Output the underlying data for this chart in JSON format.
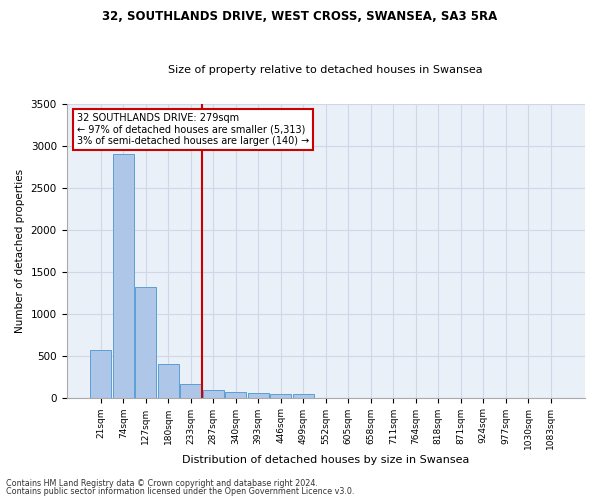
{
  "title1": "32, SOUTHLANDS DRIVE, WEST CROSS, SWANSEA, SA3 5RA",
  "title2": "Size of property relative to detached houses in Swansea",
  "xlabel": "Distribution of detached houses by size in Swansea",
  "ylabel": "Number of detached properties",
  "footnote1": "Contains HM Land Registry data © Crown copyright and database right 2024.",
  "footnote2": "Contains public sector information licensed under the Open Government Licence v3.0.",
  "annotation_line1": "32 SOUTHLANDS DRIVE: 279sqm",
  "annotation_line2": "← 97% of detached houses are smaller (5,313)",
  "annotation_line3": "3% of semi-detached houses are larger (140) →",
  "bar_labels": [
    "21sqm",
    "74sqm",
    "127sqm",
    "180sqm",
    "233sqm",
    "287sqm",
    "340sqm",
    "393sqm",
    "446sqm",
    "499sqm",
    "552sqm",
    "605sqm",
    "658sqm",
    "711sqm",
    "764sqm",
    "818sqm",
    "871sqm",
    "924sqm",
    "977sqm",
    "1030sqm",
    "1083sqm"
  ],
  "bar_values": [
    570,
    2900,
    1320,
    400,
    160,
    90,
    62,
    55,
    47,
    42,
    0,
    0,
    0,
    0,
    0,
    0,
    0,
    0,
    0,
    0,
    0
  ],
  "bar_color": "#aec6e8",
  "bar_edge_color": "#5a9fd4",
  "vline_index": 5,
  "vline_color": "#cc0000",
  "grid_color": "#d0d8e8",
  "background_color": "#eaf0f8",
  "ylim": [
    0,
    3500
  ],
  "yticks": [
    0,
    500,
    1000,
    1500,
    2000,
    2500,
    3000,
    3500
  ]
}
